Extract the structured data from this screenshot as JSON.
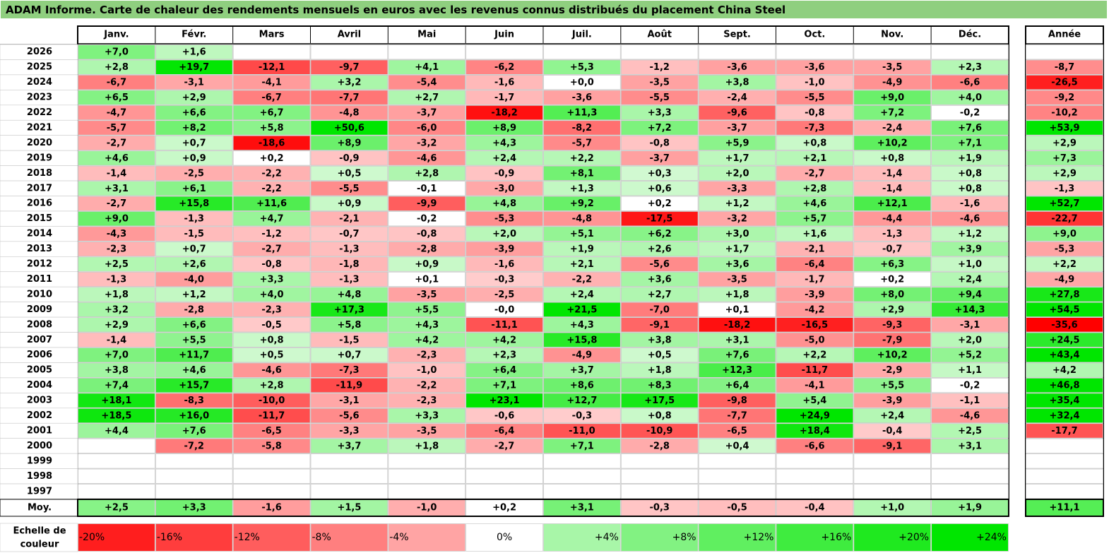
{
  "title": "ADAM Informe. Carte de chaleur des rendements mensuels en euros avec les revenus connus distribués du placement China Steel",
  "chart_data": {
    "type": "heatmap",
    "title": "ADAM Informe. Carte de chaleur des rendements mensuels en euros avec les revenus connus distribués du placement China Steel",
    "columns": [
      "Janv.",
      "Févr.",
      "Mars",
      "Avril",
      "Mai",
      "Juin",
      "Juil.",
      "Août",
      "Sept.",
      "Oct.",
      "Nov.",
      "Déc."
    ],
    "year_column": "Année",
    "average_label": "Moy.",
    "rows": [
      {
        "year": "2026",
        "values": [
          "+7,0",
          "+1,6",
          "",
          "",
          "",
          "",
          "",
          "",
          "",
          "",
          "",
          ""
        ],
        "annual": ""
      },
      {
        "year": "2025",
        "values": [
          "+2,8",
          "+19,7",
          "-12,1",
          "-9,7",
          "+4,1",
          "-6,2",
          "+5,3",
          "-1,2",
          "-3,6",
          "-3,6",
          "-3,5",
          "+2,3"
        ],
        "annual": "-8,7"
      },
      {
        "year": "2024",
        "values": [
          "-6,7",
          "-3,1",
          "-4,1",
          "+3,2",
          "-5,4",
          "-1,6",
          "+0,0",
          "-3,5",
          "+3,8",
          "-1,0",
          "-4,9",
          "-6,6"
        ],
        "annual": "-26,5"
      },
      {
        "year": "2023",
        "values": [
          "+6,5",
          "+2,9",
          "-6,7",
          "-7,7",
          "+2,7",
          "-1,7",
          "-3,6",
          "-5,5",
          "-2,4",
          "-5,5",
          "+9,0",
          "+4,0"
        ],
        "annual": "-9,2"
      },
      {
        "year": "2022",
        "values": [
          "-4,7",
          "+6,6",
          "+6,7",
          "-4,8",
          "-3,7",
          "-18,2",
          "+11,3",
          "+3,3",
          "-9,6",
          "-0,8",
          "+7,2",
          "-0,2"
        ],
        "annual": "-10,2"
      },
      {
        "year": "2021",
        "values": [
          "-5,7",
          "+8,2",
          "+5,8",
          "+50,6",
          "-6,0",
          "+8,9",
          "-8,2",
          "+7,2",
          "-3,7",
          "-7,3",
          "-2,4",
          "+7,6"
        ],
        "annual": "+53,9"
      },
      {
        "year": "2020",
        "values": [
          "-2,7",
          "+0,7",
          "-18,6",
          "+8,9",
          "-3,2",
          "+4,3",
          "-5,7",
          "-0,8",
          "+5,9",
          "+0,8",
          "+10,2",
          "+7,1"
        ],
        "annual": "+2,9"
      },
      {
        "year": "2019",
        "values": [
          "+4,6",
          "+0,9",
          "+0,2",
          "-0,9",
          "-4,6",
          "+2,4",
          "+2,2",
          "-3,7",
          "+1,7",
          "+2,1",
          "+0,8",
          "+1,9"
        ],
        "annual": "+7,3"
      },
      {
        "year": "2018",
        "values": [
          "-1,4",
          "-2,5",
          "-2,2",
          "+0,5",
          "+2,8",
          "-0,9",
          "+8,1",
          "+0,3",
          "+2,0",
          "-2,7",
          "-1,4",
          "+0,8"
        ],
        "annual": "+2,9"
      },
      {
        "year": "2017",
        "values": [
          "+3,1",
          "+6,1",
          "-2,2",
          "-5,5",
          "-0,1",
          "-3,0",
          "+1,3",
          "+0,6",
          "-3,3",
          "+2,8",
          "-1,4",
          "+0,8"
        ],
        "annual": "-1,3"
      },
      {
        "year": "2016",
        "values": [
          "-2,7",
          "+15,8",
          "+11,6",
          "+0,9",
          "-9,9",
          "+4,8",
          "+9,2",
          "+0,2",
          "+1,2",
          "+4,6",
          "+12,1",
          "-1,6"
        ],
        "annual": "+52,7"
      },
      {
        "year": "2015",
        "values": [
          "+9,0",
          "-1,3",
          "+4,7",
          "-2,1",
          "-0,2",
          "-5,3",
          "-4,8",
          "-17,5",
          "-3,2",
          "+5,7",
          "-4,4",
          "-4,6"
        ],
        "annual": "-22,7"
      },
      {
        "year": "2014",
        "values": [
          "-4,3",
          "-1,5",
          "-1,2",
          "-0,7",
          "-0,8",
          "+2,0",
          "+5,1",
          "+6,2",
          "+3,0",
          "+1,6",
          "-1,3",
          "+1,2"
        ],
        "annual": "+9,0"
      },
      {
        "year": "2013",
        "values": [
          "-2,3",
          "+0,7",
          "-2,7",
          "-1,3",
          "-2,8",
          "-3,9",
          "+1,9",
          "+2,6",
          "+1,7",
          "-2,1",
          "-0,7",
          "+3,9"
        ],
        "annual": "-5,3"
      },
      {
        "year": "2012",
        "values": [
          "+2,5",
          "+2,6",
          "-0,8",
          "-1,8",
          "+0,9",
          "-1,6",
          "+2,1",
          "-5,6",
          "+3,6",
          "-6,4",
          "+6,3",
          "+1,0"
        ],
        "annual": "+2,2"
      },
      {
        "year": "2011",
        "values": [
          "-1,3",
          "-4,0",
          "+3,3",
          "-1,3",
          "+0,1",
          "-0,3",
          "-2,2",
          "+3,6",
          "-3,5",
          "-1,7",
          "+0,2",
          "+2,4"
        ],
        "annual": "-4,9"
      },
      {
        "year": "2010",
        "values": [
          "+1,8",
          "+1,2",
          "+4,0",
          "+4,8",
          "-3,5",
          "-2,5",
          "+2,4",
          "+2,7",
          "+1,8",
          "-3,9",
          "+8,0",
          "+9,4"
        ],
        "annual": "+27,8"
      },
      {
        "year": "2009",
        "values": [
          "+3,2",
          "-2,8",
          "-2,3",
          "+17,3",
          "+5,5",
          "-0,0",
          "+21,5",
          "-7,0",
          "+0,1",
          "-4,2",
          "+2,9",
          "+14,3"
        ],
        "annual": "+54,5"
      },
      {
        "year": "2008",
        "values": [
          "+2,9",
          "+6,6",
          "-0,5",
          "+5,8",
          "+4,3",
          "-11,1",
          "+4,3",
          "-9,1",
          "-18,2",
          "-16,5",
          "-9,3",
          "-3,1"
        ],
        "annual": "-35,6"
      },
      {
        "year": "2007",
        "values": [
          "-1,4",
          "+5,5",
          "+0,8",
          "-1,5",
          "+4,2",
          "+4,2",
          "+15,8",
          "+3,8",
          "+3,1",
          "-5,0",
          "-7,9",
          "+2,0"
        ],
        "annual": "+24,5"
      },
      {
        "year": "2006",
        "values": [
          "+7,0",
          "+11,7",
          "+0,5",
          "+0,7",
          "-2,3",
          "+2,3",
          "-4,9",
          "+0,5",
          "+7,6",
          "+2,2",
          "+10,2",
          "+5,2"
        ],
        "annual": "+43,4"
      },
      {
        "year": "2005",
        "values": [
          "+3,8",
          "+4,6",
          "-4,6",
          "-7,3",
          "-1,0",
          "+6,4",
          "+3,7",
          "+1,8",
          "+12,3",
          "-11,7",
          "-2,9",
          "+1,1"
        ],
        "annual": "+4,2"
      },
      {
        "year": "2004",
        "values": [
          "+7,4",
          "+15,7",
          "+2,8",
          "-11,9",
          "-2,2",
          "+7,1",
          "+8,6",
          "+8,3",
          "+6,4",
          "-4,1",
          "+5,5",
          "-0,2"
        ],
        "annual": "+46,8"
      },
      {
        "year": "2003",
        "values": [
          "+18,1",
          "-8,3",
          "-10,0",
          "-3,1",
          "-2,3",
          "+23,1",
          "+12,7",
          "+17,5",
          "-9,8",
          "+5,4",
          "-3,9",
          "-1,1"
        ],
        "annual": "+35,4"
      },
      {
        "year": "2002",
        "values": [
          "+18,5",
          "+16,0",
          "-11,7",
          "-5,6",
          "+3,3",
          "-0,6",
          "-0,3",
          "+0,8",
          "-7,7",
          "+24,9",
          "+2,4",
          "-4,6"
        ],
        "annual": "+32,4"
      },
      {
        "year": "2001",
        "values": [
          "+4,4",
          "+7,6",
          "-6,5",
          "-3,3",
          "-3,5",
          "-6,4",
          "-11,0",
          "-10,9",
          "-6,5",
          "+18,4",
          "-0,4",
          "+2,5"
        ],
        "annual": "-17,7"
      },
      {
        "year": "2000",
        "values": [
          "",
          "-7,2",
          "-5,8",
          "+3,7",
          "+1,8",
          "-2,7",
          "+7,1",
          "-2,8",
          "+0,4",
          "-6,6",
          "-9,1",
          "+3,1"
        ],
        "annual": ""
      },
      {
        "year": "1999",
        "values": [
          "",
          "",
          "",
          "",
          "",
          "",
          "",
          "",
          "",
          "",
          "",
          ""
        ],
        "annual": ""
      },
      {
        "year": "1998",
        "values": [
          "",
          "",
          "",
          "",
          "",
          "",
          "",
          "",
          "",
          "",
          "",
          ""
        ],
        "annual": ""
      },
      {
        "year": "1997",
        "values": [
          "",
          "",
          "",
          "",
          "",
          "",
          "",
          "",
          "",
          "",
          "",
          ""
        ],
        "annual": ""
      }
    ],
    "averages": [
      "+2,5",
      "+3,3",
      "-1,6",
      "+1,5",
      "-1,0",
      "+0,2",
      "+3,1",
      "-0,3",
      "-0,5",
      "-0,4",
      "+1,0",
      "+1,9"
    ],
    "average_annual": "+11,1",
    "scale": {
      "label": "Echelle de couleur",
      "steps": [
        "-20%",
        "-16%",
        "-12%",
        "-8%",
        "-4%",
        "0%",
        "+4%",
        "+8%",
        "+12%",
        "+16%",
        "+20%",
        "+24%"
      ],
      "step_values": [
        -20,
        -16,
        -12,
        -8,
        -4,
        0,
        4,
        8,
        12,
        16,
        20,
        24
      ]
    },
    "colors": {
      "title_bg": "#8fcf7f",
      "negative_max": "#ff0000",
      "positive_max": "#00e600",
      "neutral": "#ffffff"
    }
  }
}
